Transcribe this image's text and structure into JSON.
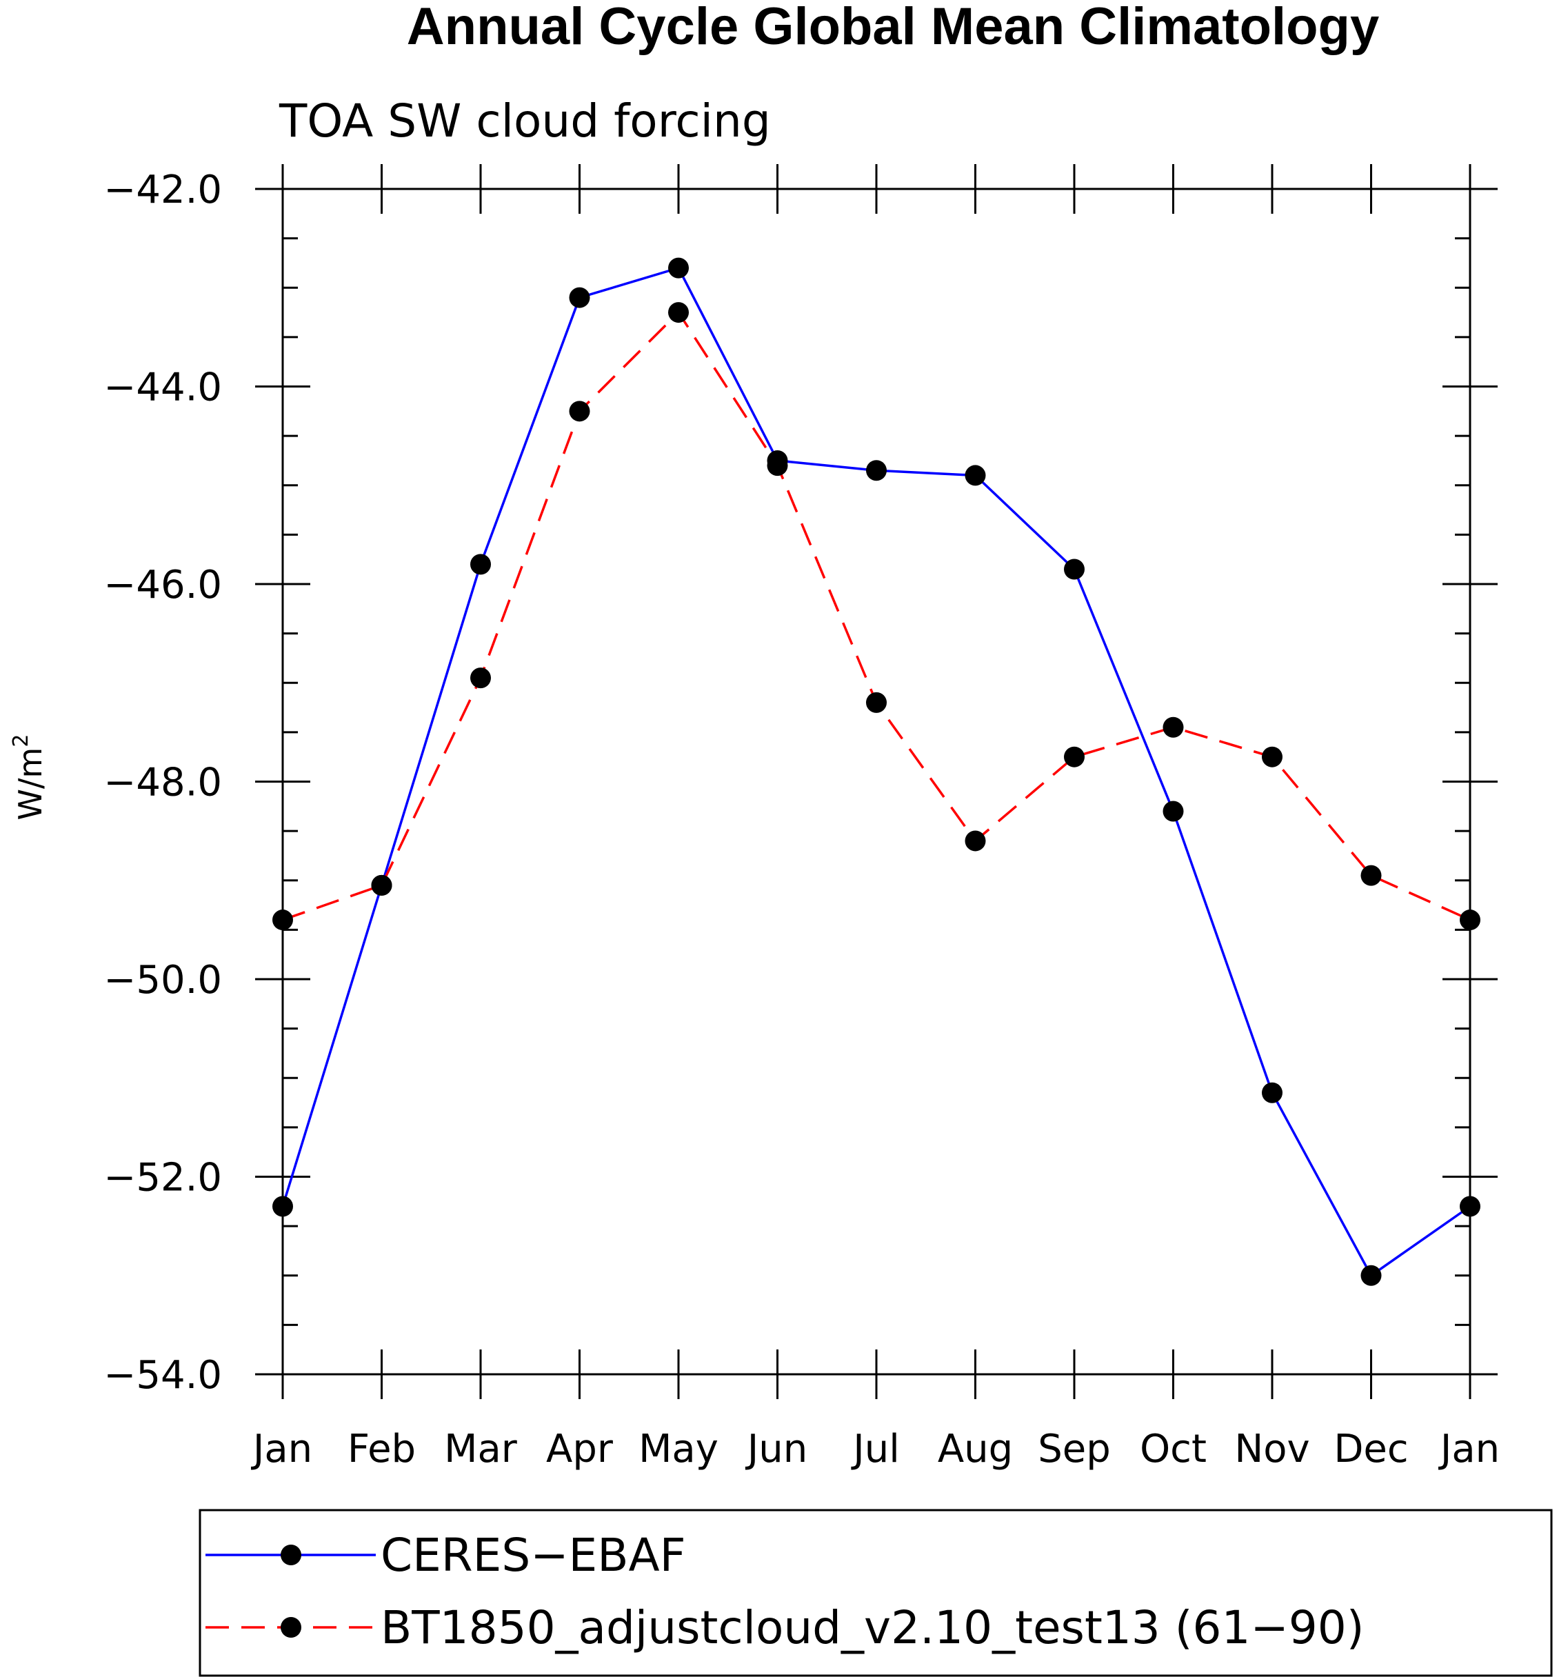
{
  "chart_data": {
    "type": "line",
    "title": "Annual Cycle Global Mean Climatology",
    "subtitle": "TOA SW cloud forcing",
    "xlabel": "",
    "ylabel_base": "W/m",
    "ylabel_sup": "2",
    "categories": [
      "Jan",
      "Feb",
      "Mar",
      "Apr",
      "May",
      "Jun",
      "Jul",
      "Aug",
      "Sep",
      "Oct",
      "Nov",
      "Dec",
      "Jan"
    ],
    "ylim": [
      -54.0,
      -42.0
    ],
    "yticks": [
      -42.0,
      -44.0,
      -46.0,
      -48.0,
      -50.0,
      -52.0,
      -54.0
    ],
    "ytick_labels": [
      "−42.0",
      "−44.0",
      "−46.0",
      "−48.0",
      "−50.0",
      "−52.0",
      "−54.0"
    ],
    "series": [
      {
        "name": "CERES−EBAF",
        "color": "#0000ff",
        "dash": "solid",
        "values": [
          -52.3,
          -49.05,
          -45.8,
          -43.1,
          -42.8,
          -44.75,
          -44.85,
          -44.9,
          -45.85,
          -48.3,
          -51.15,
          -53.0,
          -52.3
        ]
      },
      {
        "name": "BT1850_adjustcloud_v2.10_test13 (61−90)",
        "color": "#ff0000",
        "dash": "dashed",
        "values": [
          -49.4,
          -49.05,
          -46.95,
          -44.25,
          -43.25,
          -44.8,
          -47.2,
          -48.6,
          -47.75,
          -47.45,
          -47.75,
          -48.95,
          -49.4
        ]
      }
    ],
    "marker_color": "#000000",
    "legend_position": "bottom"
  }
}
